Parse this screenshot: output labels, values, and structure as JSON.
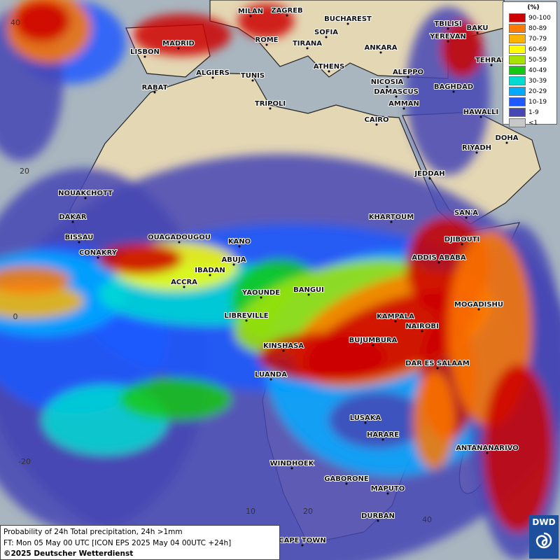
{
  "legend": {
    "title": "(%)",
    "entries": [
      {
        "label": "90-100",
        "color": "#cc0000"
      },
      {
        "label": "80-89",
        "color": "#ff7a00"
      },
      {
        "label": "70-79",
        "color": "#ffb400"
      },
      {
        "label": "60-69",
        "color": "#ffff00"
      },
      {
        "label": "50-59",
        "color": "#a6e400"
      },
      {
        "label": "40-49",
        "color": "#14c814"
      },
      {
        "label": "30-39",
        "color": "#00dcd2"
      },
      {
        "label": "20-29",
        "color": "#00aaff"
      },
      {
        "label": "10-19",
        "color": "#1e5aff"
      },
      {
        "label": "1-9",
        "color": "#4646b4"
      },
      {
        "label": "<1",
        "color": "#c8c8c8"
      }
    ]
  },
  "grid_labels": [
    "40",
    "20",
    "0",
    "-20",
    "10",
    "20",
    "40"
  ],
  "cities": [
    "MILAN",
    "ZAGREB",
    "BUCHAREST",
    "TBILISI",
    "BAKU",
    "SOFIA",
    "YEREVAN",
    "MADRID",
    "ROME",
    "TIRANA",
    "ANKARA",
    "LISBON",
    "TEHRAN",
    "ATHENS",
    "ALGIERS",
    "TUNIS",
    "ALEPPO",
    "RABAT",
    "NICOSIA",
    "BAGHDAD",
    "DAMASCUS",
    "TRIPOLI",
    "AMMAN",
    "HAWALLI",
    "CAIRO",
    "DOHA",
    "RIYADH",
    "JEDDAH",
    "NOUAKCHOTT",
    "SAN'A",
    "DAKAR",
    "KHARTOUM",
    "BISSAU",
    "DJIBOUTI",
    "OUAGADOUGOU",
    "KANO",
    "CONAKRY",
    "ADDIS ABABA",
    "ABUJA",
    "IBADAN",
    "ACCRA",
    "BANGUI",
    "YAOUNDE",
    "MOGADISHU",
    "LIBREVILLE",
    "KAMPALA",
    "NAIROBI",
    "BUJUMBURA",
    "KINSHASA",
    "DAR ES SALAAM",
    "LUANDA",
    "LUSAKA",
    "HARARE",
    "ANTANANARIVO",
    "WINDHOEK",
    "GABORONE",
    "MAPUTO",
    "DURBAN",
    "CAPE TOWN"
  ],
  "footer": {
    "title": "Probability of 24h Total precipitation, 24h >1mm",
    "forecast": "FT: Mon 05 May 00 UTC [ICON EPS 2025 May 04 00UTC +24h]",
    "copyright": "©2025 Deutscher Wetterdienst"
  },
  "logo": "DWD"
}
